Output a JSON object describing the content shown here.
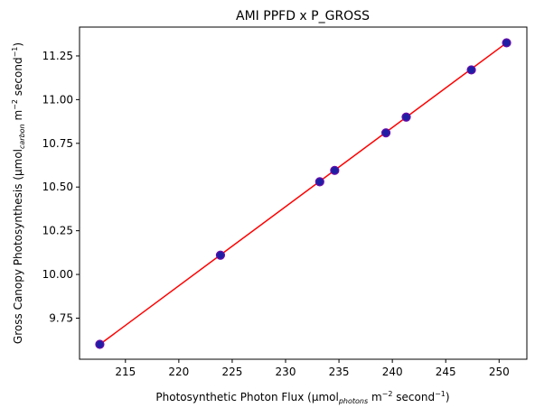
{
  "chart_data": {
    "type": "scatter",
    "title": "AMI PPFD x P_GROSS",
    "xlabel": {
      "pre": "Photosynthetic Photon Flux (µmol",
      "sub": "photons",
      "mid": " m",
      "sup1": "−2",
      "mid2": " second",
      "sup2": "−1",
      "post": ")"
    },
    "ylabel": {
      "pre": "Gross Canopy Photosynthesis (µmol",
      "sub": "carbon",
      "mid": " m",
      "sup1": "−2",
      "mid2": " second",
      "sup2": "−1",
      "post": ")"
    },
    "xlim": [
      210.7,
      252.6
    ],
    "ylim": [
      9.515,
      11.415
    ],
    "xticks": [
      215,
      220,
      225,
      230,
      235,
      240,
      245,
      250
    ],
    "yticks": [
      9.75,
      10.0,
      10.25,
      10.5,
      10.75,
      11.0,
      11.25
    ],
    "ytick_labels": [
      "9.75",
      "10.00",
      "10.25",
      "10.50",
      "10.75",
      "11.00",
      "11.25"
    ],
    "points": [
      {
        "x": 212.6,
        "y": 9.6
      },
      {
        "x": 223.9,
        "y": 10.11
      },
      {
        "x": 233.2,
        "y": 10.53
      },
      {
        "x": 234.6,
        "y": 10.595
      },
      {
        "x": 239.4,
        "y": 10.81
      },
      {
        "x": 241.3,
        "y": 10.9
      },
      {
        "x": 247.4,
        "y": 11.17
      },
      {
        "x": 250.7,
        "y": 11.325
      }
    ],
    "fit_line": {
      "x": [
        212.6,
        250.7
      ],
      "y": [
        9.6,
        11.325
      ]
    },
    "colors": {
      "marker_fill": "#1f1fa3",
      "marker_edge": "#6a0dad",
      "line": "#ff0000"
    }
  }
}
